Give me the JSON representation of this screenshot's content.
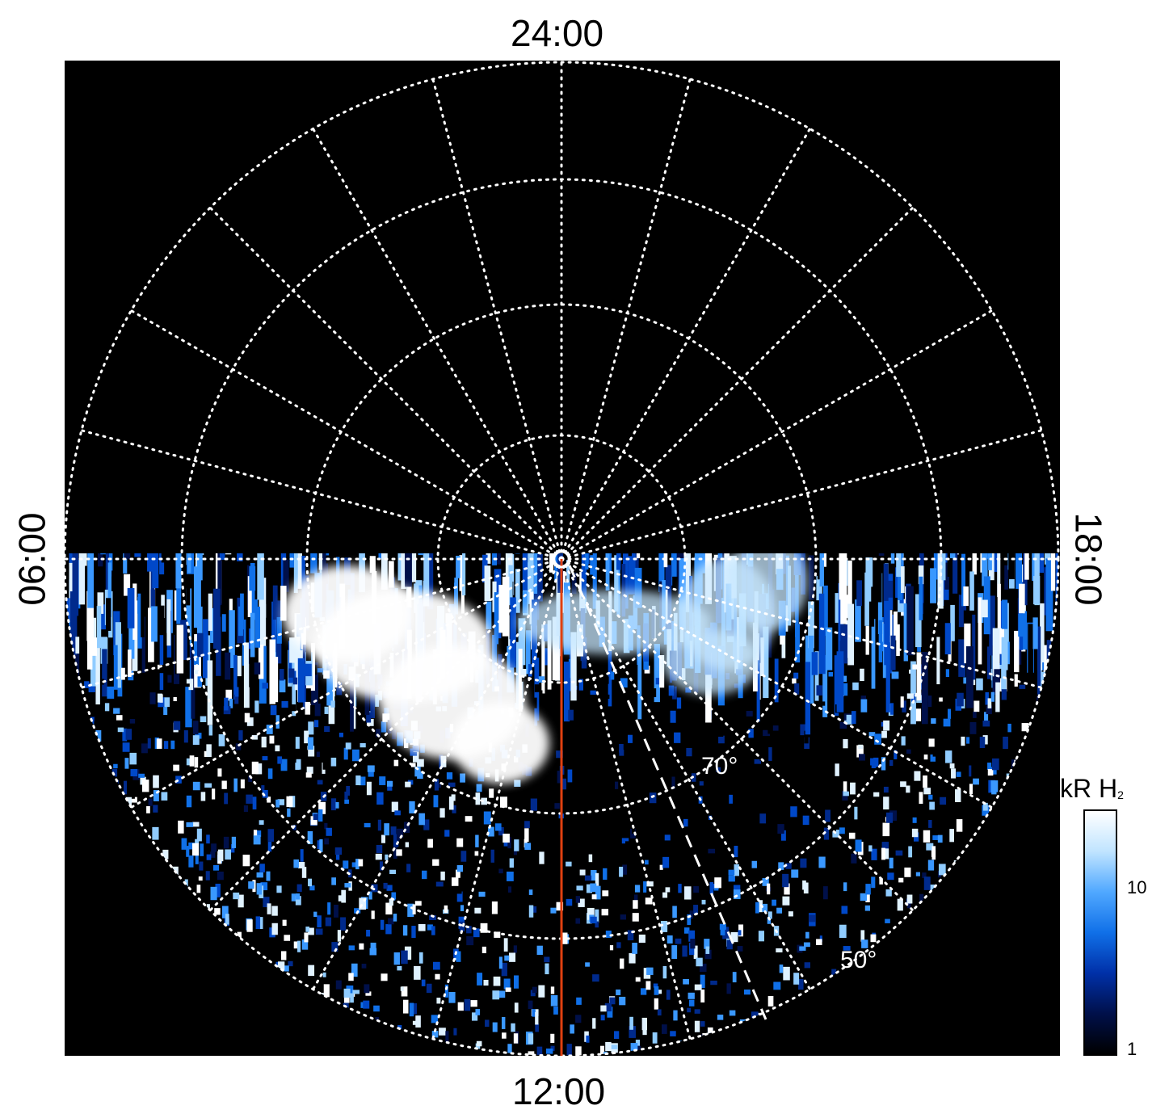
{
  "labels": {
    "top": "24:00",
    "bottom": "12:00",
    "left": "06:00",
    "right": "18:00"
  },
  "annotations": {
    "lat_inner": "70°",
    "lat_outer": "50°"
  },
  "colorbar": {
    "title": "kR H",
    "title_sub": "2",
    "ticks": [
      "10",
      "1"
    ],
    "colors": [
      "#000000",
      "#00104a",
      "#0030a8",
      "#1070e8",
      "#50a8ff",
      "#c0e4ff",
      "#ffffff"
    ]
  },
  "colors": {
    "background": "#000000",
    "grid": "#ffffff",
    "meridian": "#e04010"
  }
}
